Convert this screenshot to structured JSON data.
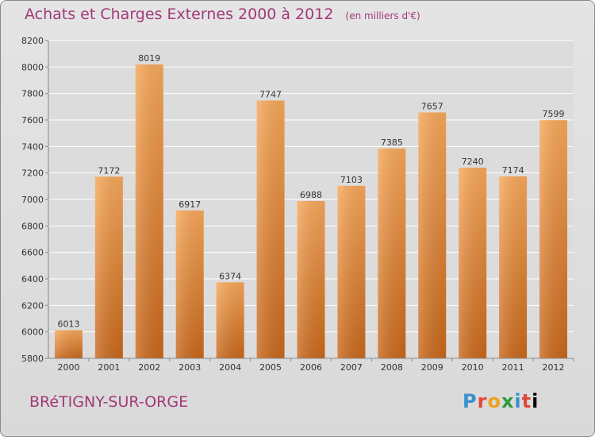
{
  "header": {
    "title": "Achats et Charges Externes 2000 à 2012",
    "unit": "(en milliers d'€)"
  },
  "footer": {
    "city": "BRéTIGNY-SUR-ORGE",
    "logo": [
      "P",
      "r",
      "o",
      "x",
      "i",
      "t",
      "i"
    ]
  },
  "colors": {
    "title": "#a23a78",
    "bar_light": "#f6a354",
    "bar_dark": "#c86a1e",
    "grid": "#ffffff",
    "plot_bg": "#dedede"
  },
  "chart_data": {
    "type": "bar",
    "title": "Achats et Charges Externes 2000 à 2012",
    "subtitle": "(en milliers d'€)",
    "categories": [
      "2000",
      "2001",
      "2002",
      "2003",
      "2004",
      "2005",
      "2006",
      "2007",
      "2008",
      "2009",
      "2010",
      "2011",
      "2012"
    ],
    "values": [
      6013,
      7172,
      8019,
      6917,
      6374,
      7747,
      6988,
      7103,
      7385,
      7657,
      7240,
      7174,
      7599
    ],
    "ylim": [
      5800,
      8200
    ],
    "yticks": [
      5800,
      6000,
      6200,
      6400,
      6600,
      6800,
      7000,
      7200,
      7400,
      7600,
      7800,
      8000,
      8200
    ],
    "grid": true,
    "xlabel": "",
    "ylabel": ""
  }
}
